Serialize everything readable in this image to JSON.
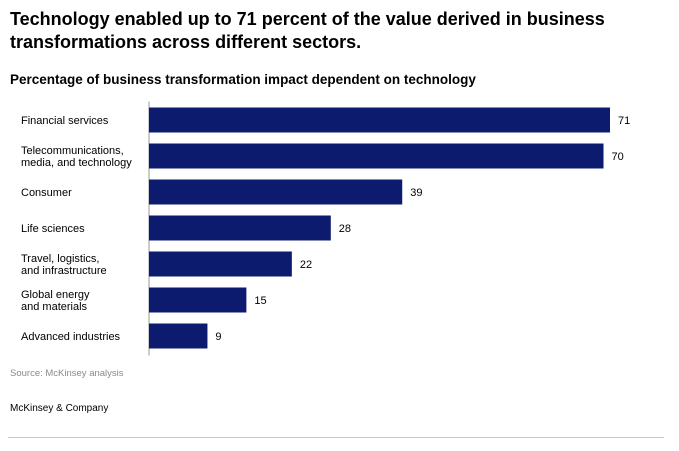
{
  "title": "Technology enabled up to 71 percent of the value derived in business transformations across different sectors.",
  "subtitle": "Percentage of business transformation impact dependent on technology",
  "source": "Source: McKinsey analysis",
  "brand": "McKinsey & Company",
  "colors": {
    "bar": "#0d1b6e",
    "axis": "#9a9a9a",
    "text": "#000000",
    "muted": "#8a8a8a"
  },
  "chart_data": {
    "type": "bar",
    "orientation": "horizontal",
    "title": "Percentage of business transformation impact dependent on technology",
    "categories": [
      [
        "Financial services"
      ],
      [
        "Telecommunications,",
        "media, and technology"
      ],
      [
        "Consumer"
      ],
      [
        "Life sciences"
      ],
      [
        "Travel, logistics,",
        "and infrastructure"
      ],
      [
        "Global energy",
        "and materials"
      ],
      [
        "Advanced industries"
      ]
    ],
    "values": [
      71,
      70,
      39,
      28,
      22,
      15,
      9
    ],
    "xlim": [
      0,
      71
    ],
    "grid": false,
    "legend": "none"
  }
}
